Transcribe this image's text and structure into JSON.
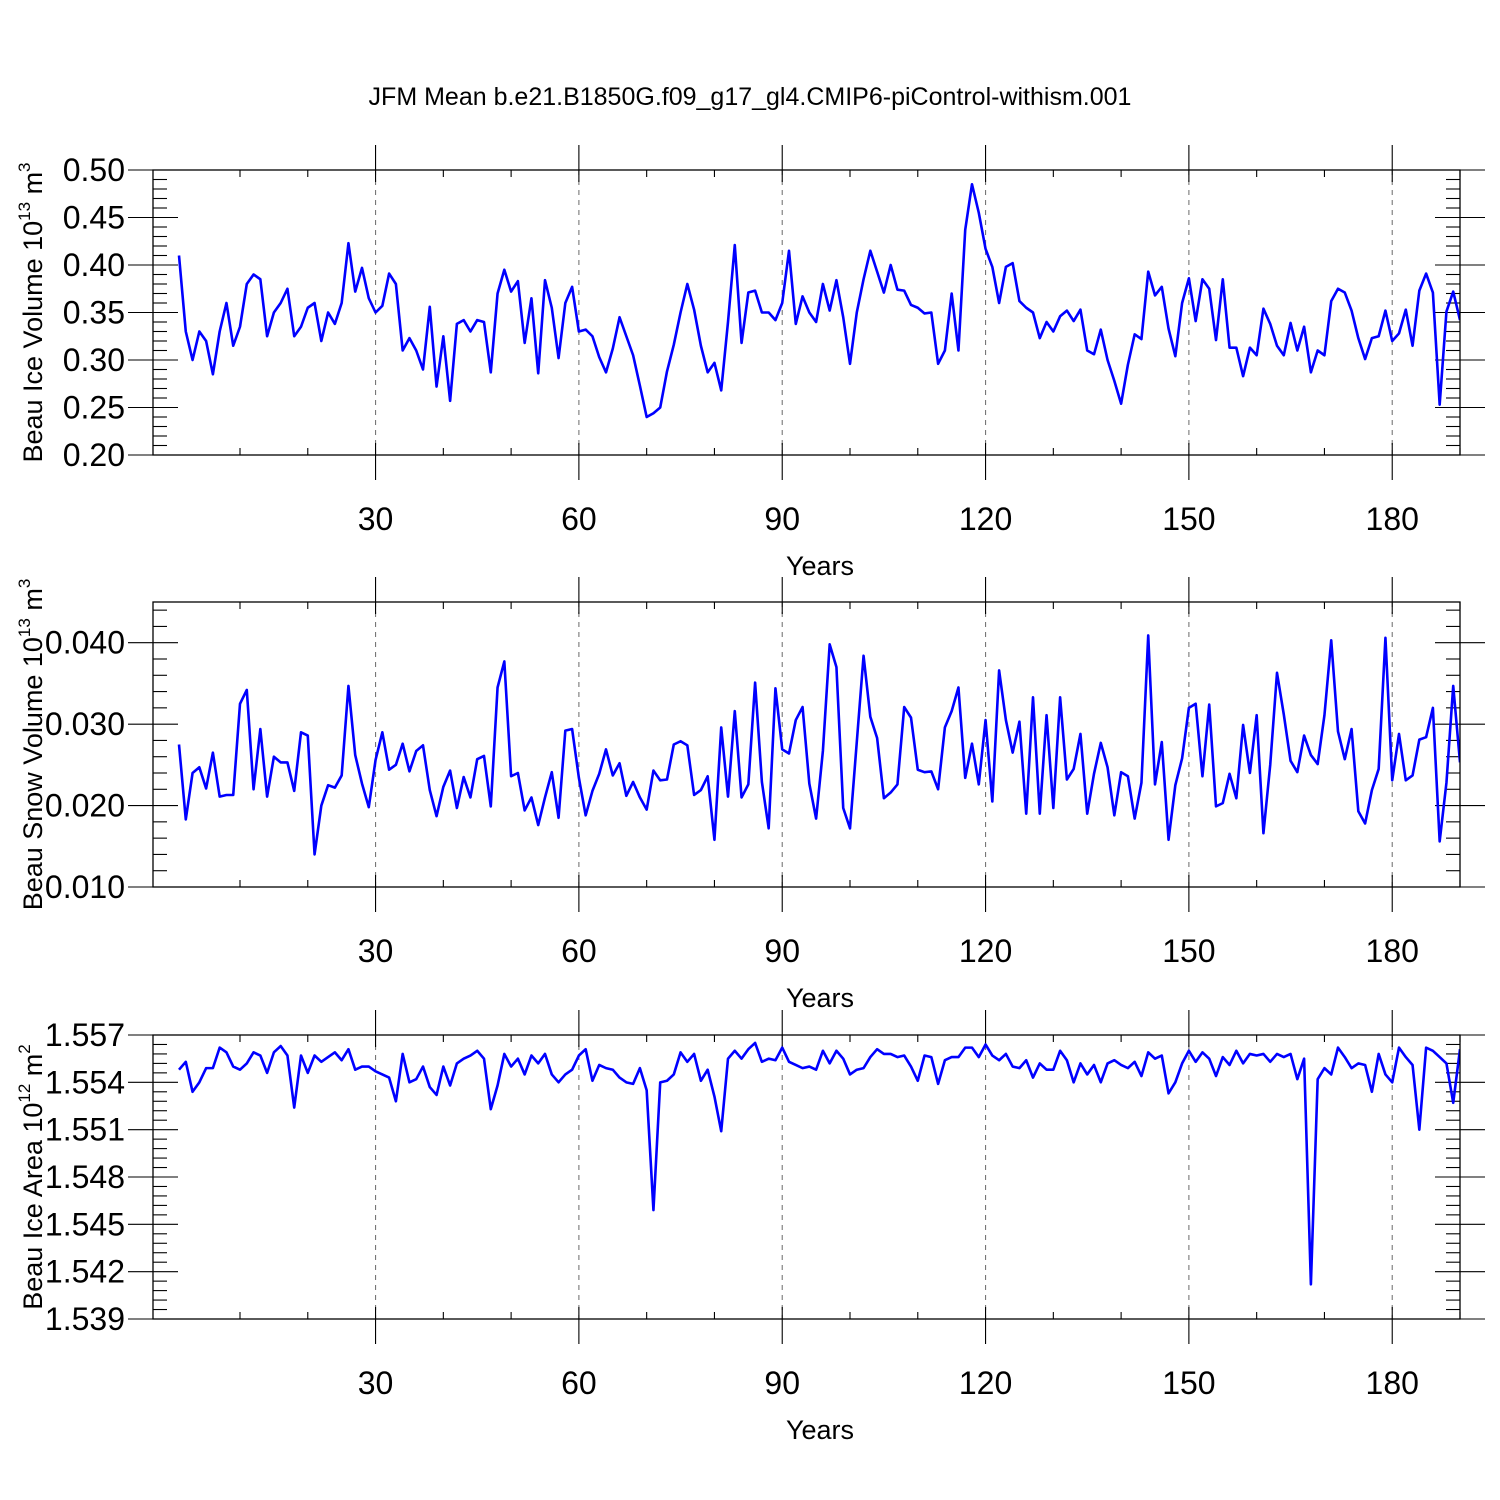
{
  "title": "JFM Mean b.e21.B1850G.f09_g17_gl4.CMIP6-piControl-withism.001",
  "colors": {
    "series": "#0000ff",
    "grid": "#777777"
  },
  "chart_data": [
    {
      "type": "line",
      "ylabel": "Beau Ice Volume 10^13 m^3",
      "ylabel_parts": {
        "text": "Beau Ice Volume 10",
        "exp1": "13",
        "unit": " m",
        "exp2": "3"
      },
      "xlabel": "Years",
      "xlim": [
        1,
        190
      ],
      "ylim": [
        0.2,
        0.5
      ],
      "yticks": [
        0.2,
        0.25,
        0.3,
        0.35,
        0.4,
        0.45,
        0.5
      ],
      "yticklabels": [
        "0.20",
        "0.25",
        "0.30",
        "0.35",
        "0.40",
        "0.45",
        "0.50"
      ],
      "xticks": [
        30,
        60,
        90,
        120,
        150,
        180
      ],
      "xticklabels": [
        "30",
        "60",
        "90",
        "120",
        "150",
        "180"
      ],
      "grid_x": true,
      "x_start": 1,
      "values": [
        0.41,
        0.33,
        0.3,
        0.33,
        0.32,
        0.285,
        0.33,
        0.36,
        0.315,
        0.335,
        0.38,
        0.39,
        0.385,
        0.325,
        0.35,
        0.36,
        0.375,
        0.325,
        0.335,
        0.355,
        0.36,
        0.32,
        0.35,
        0.338,
        0.36,
        0.423,
        0.372,
        0.397,
        0.365,
        0.35,
        0.357,
        0.391,
        0.38,
        0.31,
        0.323,
        0.31,
        0.29,
        0.356,
        0.272,
        0.325,
        0.257,
        0.338,
        0.342,
        0.33,
        0.342,
        0.34,
        0.287,
        0.37,
        0.395,
        0.372,
        0.383,
        0.318,
        0.365,
        0.286,
        0.384,
        0.355,
        0.302,
        0.36,
        0.377,
        0.33,
        0.332,
        0.325,
        0.303,
        0.287,
        0.312,
        0.345,
        0.325,
        0.305,
        0.273,
        0.24,
        0.244,
        0.25,
        0.288,
        0.316,
        0.35,
        0.38,
        0.353,
        0.315,
        0.287,
        0.297,
        0.268,
        0.34,
        0.421,
        0.318,
        0.371,
        0.373,
        0.35,
        0.35,
        0.342,
        0.36,
        0.415,
        0.338,
        0.367,
        0.35,
        0.34,
        0.38,
        0.352,
        0.384,
        0.345,
        0.296,
        0.35,
        0.385,
        0.415,
        0.393,
        0.371,
        0.4,
        0.374,
        0.373,
        0.358,
        0.355,
        0.349,
        0.35,
        0.296,
        0.31,
        0.37,
        0.31,
        0.437,
        0.485,
        0.455,
        0.417,
        0.398,
        0.36,
        0.398,
        0.402,
        0.362,
        0.355,
        0.35,
        0.323,
        0.34,
        0.33,
        0.346,
        0.352,
        0.341,
        0.353,
        0.31,
        0.306,
        0.332,
        0.3,
        0.278,
        0.254,
        0.295,
        0.327,
        0.322,
        0.393,
        0.368,
        0.377,
        0.333,
        0.304,
        0.36,
        0.386,
        0.341,
        0.385,
        0.375,
        0.321,
        0.385,
        0.313,
        0.313,
        0.283,
        0.313,
        0.305,
        0.354,
        0.338,
        0.315,
        0.305,
        0.339,
        0.31,
        0.335,
        0.287,
        0.31,
        0.305,
        0.362,
        0.375,
        0.371,
        0.352,
        0.323,
        0.301,
        0.323,
        0.325,
        0.352,
        0.32,
        0.328,
        0.353,
        0.315,
        0.373,
        0.391,
        0.371,
        0.253,
        0.351,
        0.372,
        0.342
      ]
    },
    {
      "type": "line",
      "ylabel": "Beau Snow Volume 10^13 m^3",
      "ylabel_parts": {
        "text": "Beau Snow Volume 10",
        "exp1": "13",
        "unit": " m",
        "exp2": "3"
      },
      "xlabel": "Years",
      "xlim": [
        1,
        190
      ],
      "ylim": [
        0.01,
        0.045
      ],
      "yticks": [
        0.01,
        0.02,
        0.03,
        0.04
      ],
      "yticklabels": [
        "0.010",
        "0.020",
        "0.030",
        "0.040"
      ],
      "xticks": [
        30,
        60,
        90,
        120,
        150,
        180
      ],
      "xticklabels": [
        "30",
        "60",
        "90",
        "120",
        "150",
        "180"
      ],
      "grid_x": true,
      "x_start": 1,
      "values": [
        0.0275,
        0.0183,
        0.024,
        0.0247,
        0.0221,
        0.0265,
        0.0211,
        0.0213,
        0.0213,
        0.0325,
        0.0342,
        0.022,
        0.0294,
        0.0211,
        0.026,
        0.0253,
        0.0253,
        0.0218,
        0.029,
        0.0286,
        0.014,
        0.02,
        0.0225,
        0.0222,
        0.0237,
        0.0347,
        0.0262,
        0.0227,
        0.0198,
        0.0256,
        0.029,
        0.0244,
        0.025,
        0.0276,
        0.0242,
        0.0267,
        0.0274,
        0.0219,
        0.0187,
        0.0223,
        0.0243,
        0.0197,
        0.0235,
        0.021,
        0.0257,
        0.0261,
        0.0199,
        0.0345,
        0.0377,
        0.0236,
        0.024,
        0.0194,
        0.021,
        0.0176,
        0.021,
        0.0241,
        0.0185,
        0.0292,
        0.0294,
        0.0234,
        0.0188,
        0.0218,
        0.0239,
        0.0269,
        0.0237,
        0.0252,
        0.0212,
        0.0229,
        0.021,
        0.0195,
        0.0243,
        0.0231,
        0.0232,
        0.0275,
        0.0279,
        0.0274,
        0.0213,
        0.0219,
        0.0236,
        0.0158,
        0.0296,
        0.0211,
        0.0316,
        0.021,
        0.0226,
        0.0351,
        0.0229,
        0.0172,
        0.0344,
        0.0269,
        0.0264,
        0.0305,
        0.0321,
        0.0227,
        0.0184,
        0.0267,
        0.0398,
        0.037,
        0.0197,
        0.0172,
        0.0278,
        0.0384,
        0.0309,
        0.0283,
        0.0209,
        0.0216,
        0.0226,
        0.0321,
        0.0308,
        0.0244,
        0.0241,
        0.0242,
        0.022,
        0.0296,
        0.0316,
        0.0345,
        0.0234,
        0.0276,
        0.0226,
        0.0305,
        0.0205,
        0.0366,
        0.0305,
        0.0265,
        0.0303,
        0.019,
        0.0333,
        0.019,
        0.0311,
        0.0197,
        0.0333,
        0.0232,
        0.0245,
        0.0288,
        0.019,
        0.0239,
        0.0277,
        0.0247,
        0.0188,
        0.0241,
        0.0236,
        0.0184,
        0.0228,
        0.0409,
        0.0226,
        0.0278,
        0.0158,
        0.0225,
        0.0258,
        0.032,
        0.0325,
        0.0236,
        0.0324,
        0.0199,
        0.0203,
        0.0239,
        0.0209,
        0.0299,
        0.024,
        0.0311,
        0.0166,
        0.025,
        0.0363,
        0.0312,
        0.0255,
        0.0241,
        0.0286,
        0.0262,
        0.0251,
        0.0311,
        0.0403,
        0.0291,
        0.0257,
        0.0294,
        0.0193,
        0.0178,
        0.0219,
        0.0245,
        0.0406,
        0.0231,
        0.0288,
        0.0231,
        0.0237,
        0.0281,
        0.0284,
        0.032,
        0.0156,
        0.0228,
        0.0347,
        0.0253
      ]
    },
    {
      "type": "line",
      "ylabel": "Beau Ice Area 10^12 m^2",
      "ylabel_parts": {
        "text": "Beau Ice Area 10",
        "exp1": "12",
        "unit": " m",
        "exp2": "2"
      },
      "xlabel": "Years",
      "xlim": [
        1,
        190
      ],
      "ylim": [
        1.539,
        1.557
      ],
      "yticks": [
        1.539,
        1.542,
        1.545,
        1.548,
        1.551,
        1.554,
        1.557
      ],
      "yticklabels": [
        "1.539",
        "1.542",
        "1.545",
        "1.548",
        "1.551",
        "1.554",
        "1.557"
      ],
      "xticks": [
        30,
        60,
        90,
        120,
        150,
        180
      ],
      "xticklabels": [
        "30",
        "60",
        "90",
        "120",
        "150",
        "180"
      ],
      "grid_x": true,
      "x_start": 1,
      "values": [
        1.5548,
        1.5553,
        1.5534,
        1.554,
        1.5549,
        1.5549,
        1.5562,
        1.5559,
        1.555,
        1.5548,
        1.5552,
        1.5559,
        1.5557,
        1.5546,
        1.5559,
        1.5563,
        1.5557,
        1.5524,
        1.5557,
        1.5546,
        1.5557,
        1.5553,
        1.5556,
        1.5559,
        1.5554,
        1.5561,
        1.5548,
        1.555,
        1.555,
        1.5547,
        1.5545,
        1.5543,
        1.5528,
        1.5558,
        1.554,
        1.5542,
        1.555,
        1.5537,
        1.5532,
        1.555,
        1.5538,
        1.5552,
        1.5555,
        1.5557,
        1.556,
        1.5555,
        1.5523,
        1.5538,
        1.5558,
        1.555,
        1.5555,
        1.5545,
        1.5557,
        1.5552,
        1.5558,
        1.5545,
        1.554,
        1.5545,
        1.5548,
        1.5557,
        1.5561,
        1.5541,
        1.5551,
        1.5549,
        1.5548,
        1.5543,
        1.554,
        1.5539,
        1.5549,
        1.5535,
        1.5459,
        1.554,
        1.5541,
        1.5545,
        1.5559,
        1.5553,
        1.5558,
        1.5541,
        1.5548,
        1.5531,
        1.5509,
        1.5555,
        1.556,
        1.5555,
        1.5561,
        1.5565,
        1.5553,
        1.5555,
        1.5554,
        1.5562,
        1.5553,
        1.5551,
        1.5549,
        1.555,
        1.5548,
        1.556,
        1.5552,
        1.556,
        1.5555,
        1.5545,
        1.5548,
        1.5549,
        1.5556,
        1.5561,
        1.5558,
        1.5558,
        1.5556,
        1.5557,
        1.555,
        1.5541,
        1.5557,
        1.5556,
        1.5539,
        1.5554,
        1.5556,
        1.5556,
        1.5562,
        1.5562,
        1.5556,
        1.5564,
        1.5557,
        1.5554,
        1.5558,
        1.555,
        1.5549,
        1.5554,
        1.5543,
        1.5552,
        1.5548,
        1.5548,
        1.556,
        1.5554,
        1.554,
        1.5552,
        1.5545,
        1.5551,
        1.554,
        1.5552,
        1.5554,
        1.5551,
        1.5549,
        1.5553,
        1.5544,
        1.5559,
        1.5555,
        1.5557,
        1.5533,
        1.554,
        1.5552,
        1.556,
        1.5553,
        1.5559,
        1.5555,
        1.5544,
        1.5556,
        1.5551,
        1.556,
        1.5552,
        1.5558,
        1.5557,
        1.5558,
        1.5553,
        1.5558,
        1.5556,
        1.5558,
        1.5542,
        1.5555,
        1.5412,
        1.5542,
        1.5549,
        1.5545,
        1.5562,
        1.5556,
        1.5549,
        1.5552,
        1.5551,
        1.5534,
        1.5558,
        1.5545,
        1.554,
        1.5562,
        1.5556,
        1.5551,
        1.551,
        1.5562,
        1.556,
        1.5556,
        1.5552,
        1.5527,
        1.5561
      ]
    }
  ]
}
